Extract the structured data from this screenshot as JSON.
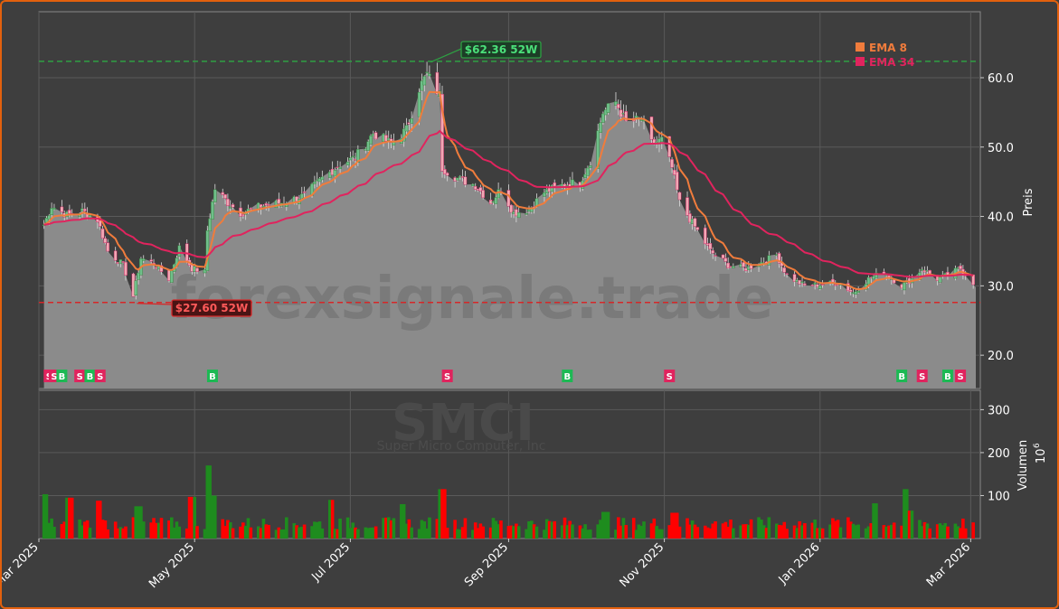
{
  "chart_data": {
    "type": "candlestick",
    "ticker": "SMCI",
    "company": "Super Micro Computer, Inc",
    "watermark": "forexsignale.trade",
    "price_axis": {
      "label": "Preis",
      "ticks": [
        20.0,
        30.0,
        40.0,
        50.0,
        60.0
      ],
      "tick_labels": [
        "20.0",
        "30.0",
        "40.0",
        "50.0",
        "60.0"
      ],
      "range": [
        15.2,
        69.5
      ]
    },
    "volume_axis": {
      "label": "Volumen",
      "unit_label": "10",
      "unit_exp": "6",
      "ticks": [
        100,
        200,
        300
      ],
      "range": [
        0,
        345
      ]
    },
    "x_axis": {
      "labels": [
        "Mar 2025",
        "May 2025",
        "Jul 2025",
        "Sep 2025",
        "Nov 2025",
        "Jan 2026",
        "Mar 2026"
      ],
      "label_dates": [
        "2025-03-01",
        "2025-05-01",
        "2025-07-01",
        "2025-09-01",
        "2025-11-01",
        "2026-01-01",
        "2026-03-01"
      ],
      "start": "2025-03-01",
      "end": "2026-03-03"
    },
    "legend": {
      "position": "top-right",
      "items": [
        {
          "name": "EMA 8",
          "color": "#f07c3c"
        },
        {
          "name": "EMA 34",
          "color": "#e0245e"
        }
      ]
    },
    "high_52w": {
      "value": 62.36,
      "label": "$62.36 52W",
      "date": "2025-07-31",
      "color": "#2ea043"
    },
    "low_52w": {
      "value": 27.6,
      "label": "$27.60 52W",
      "date": "2025-04-07",
      "color": "#d62728"
    },
    "close_line": 29.8,
    "anchors": [
      [
        "2025-03-01",
        37.0
      ],
      [
        "2025-03-06",
        41.5
      ],
      [
        "2025-03-12",
        40.2
      ],
      [
        "2025-03-18",
        40.8
      ],
      [
        "2025-03-24",
        39.5
      ],
      [
        "2025-03-28",
        35.0
      ],
      [
        "2025-04-03",
        33.0
      ],
      [
        "2025-04-07",
        28.5
      ],
      [
        "2025-04-10",
        34.0
      ],
      [
        "2025-04-15",
        33.2
      ],
      [
        "2025-04-21",
        31.0
      ],
      [
        "2025-04-25",
        35.5
      ],
      [
        "2025-04-30",
        32.5
      ],
      [
        "2025-05-05",
        32.0
      ],
      [
        "2025-05-06",
        38.0
      ],
      [
        "2025-05-09",
        44.0
      ],
      [
        "2025-05-14",
        42.0
      ],
      [
        "2025-05-19",
        40.5
      ],
      [
        "2025-05-27",
        41.5
      ],
      [
        "2025-06-04",
        42.0
      ],
      [
        "2025-06-13",
        43.0
      ],
      [
        "2025-06-20",
        45.5
      ],
      [
        "2025-06-27",
        47.5
      ],
      [
        "2025-07-03",
        48.5
      ],
      [
        "2025-07-10",
        52.0
      ],
      [
        "2025-07-17",
        50.5
      ],
      [
        "2025-07-23",
        52.5
      ],
      [
        "2025-07-28",
        58.5
      ],
      [
        "2025-07-31",
        60.5
      ],
      [
        "2025-08-05",
        57.5
      ],
      [
        "2025-08-06",
        47.0
      ],
      [
        "2025-08-12",
        45.5
      ],
      [
        "2025-08-19",
        44.5
      ],
      [
        "2025-08-25",
        42.0
      ],
      [
        "2025-08-29",
        44.0
      ],
      [
        "2025-09-03",
        40.5
      ],
      [
        "2025-09-09",
        41.0
      ],
      [
        "2025-09-15",
        43.5
      ],
      [
        "2025-09-22",
        44.5
      ],
      [
        "2025-09-29",
        45.0
      ],
      [
        "2025-10-03",
        48.0
      ],
      [
        "2025-10-08",
        55.0
      ],
      [
        "2025-10-13",
        56.5
      ],
      [
        "2025-10-17",
        53.5
      ],
      [
        "2025-10-23",
        54.0
      ],
      [
        "2025-10-27",
        50.5
      ],
      [
        "2025-10-31",
        51.0
      ],
      [
        "2025-11-04",
        47.0
      ],
      [
        "2025-11-07",
        42.0
      ],
      [
        "2025-11-13",
        38.5
      ],
      [
        "2025-11-19",
        35.0
      ],
      [
        "2025-11-26",
        33.0
      ],
      [
        "2025-12-03",
        32.5
      ],
      [
        "2025-12-10",
        33.5
      ],
      [
        "2025-12-15",
        34.5
      ],
      [
        "2025-12-19",
        31.5
      ],
      [
        "2025-12-26",
        30.0
      ],
      [
        "2026-01-02",
        30.2
      ],
      [
        "2026-01-08",
        30.5
      ],
      [
        "2026-01-14",
        29.0
      ],
      [
        "2026-01-20",
        31.0
      ],
      [
        "2026-01-26",
        32.0
      ],
      [
        "2026-02-02",
        30.0
      ],
      [
        "2026-02-06",
        31.0
      ],
      [
        "2026-02-10",
        32.5
      ],
      [
        "2026-02-16",
        31.0
      ],
      [
        "2026-02-20",
        31.5
      ],
      [
        "2026-02-25",
        32.5
      ],
      [
        "2026-03-02",
        30.5
      ]
    ],
    "signals": [
      {
        "type": "S",
        "date": "2025-03-05"
      },
      {
        "type": "S",
        "date": "2025-03-07"
      },
      {
        "type": "B",
        "date": "2025-03-10"
      },
      {
        "type": "S",
        "date": "2025-03-17"
      },
      {
        "type": "B",
        "date": "2025-03-21"
      },
      {
        "type": "S",
        "date": "2025-03-25"
      },
      {
        "type": "B",
        "date": "2025-05-08"
      },
      {
        "type": "S",
        "date": "2025-08-08"
      },
      {
        "type": "B",
        "date": "2025-09-24"
      },
      {
        "type": "S",
        "date": "2025-11-03"
      },
      {
        "type": "B",
        "date": "2026-02-02"
      },
      {
        "type": "S",
        "date": "2026-02-10"
      },
      {
        "type": "B",
        "date": "2026-02-20"
      },
      {
        "type": "S",
        "date": "2026-02-25"
      }
    ],
    "volume_spikes": [
      [
        "2025-03-03",
        103
      ],
      [
        "2025-03-13",
        95
      ],
      [
        "2025-03-24",
        88
      ],
      [
        "2025-04-09",
        75
      ],
      [
        "2025-04-30",
        97
      ],
      [
        "2025-05-07",
        170
      ],
      [
        "2025-05-09",
        100
      ],
      [
        "2025-06-23",
        90
      ],
      [
        "2025-07-21",
        80
      ],
      [
        "2025-08-06",
        115
      ],
      [
        "2025-10-09",
        62
      ],
      [
        "2025-11-05",
        60
      ],
      [
        "2026-01-23",
        82
      ],
      [
        "2026-02-04",
        115
      ],
      [
        "2026-02-06",
        65
      ]
    ],
    "colors": {
      "up": "#1e8c1e",
      "down": "#ff0000",
      "up_body": "#6fbf8a",
      "down_body": "#f2a7b4",
      "area": "#8b8b8b",
      "panel_bg": "#3e3e3e",
      "grid": "#5a5a5a",
      "ema_fast": "#f07c3c",
      "ema_slow": "#e0245e"
    }
  }
}
